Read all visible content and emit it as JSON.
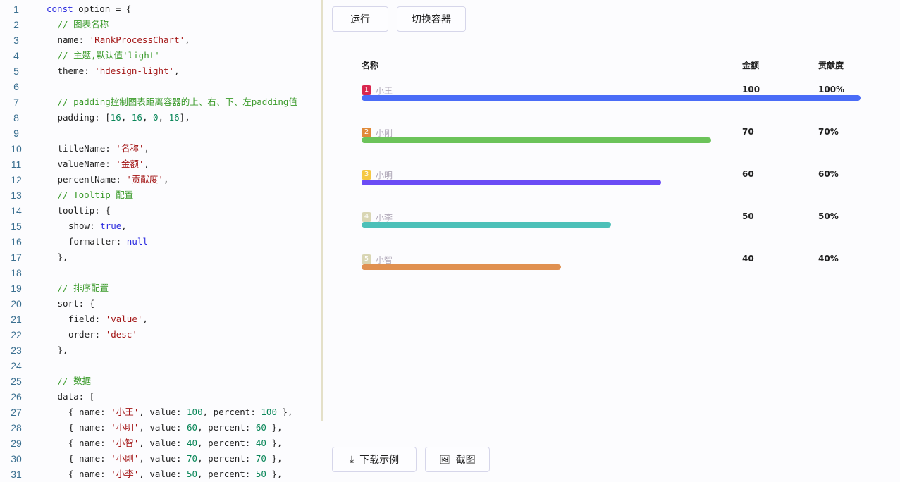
{
  "editor": {
    "lines": [
      [
        0,
        [
          [
            "const",
            "k"
          ],
          [
            " option = {",
            "p"
          ]
        ]
      ],
      [
        1,
        [
          [
            "// 图表名称",
            "c"
          ]
        ]
      ],
      [
        1,
        [
          [
            "name: ",
            "p"
          ],
          [
            "'RankProcessChart'",
            "s"
          ],
          [
            ",",
            "p"
          ]
        ]
      ],
      [
        1,
        [
          [
            "// 主题,默认值'light'",
            "c"
          ]
        ]
      ],
      [
        1,
        [
          [
            "theme: ",
            "p"
          ],
          [
            "'hdesign-light'",
            "s"
          ],
          [
            ",",
            "p"
          ]
        ]
      ],
      [
        0,
        []
      ],
      [
        1,
        [
          [
            "// padding控制图表距离容器的上、右、下、左padding值",
            "c"
          ]
        ]
      ],
      [
        1,
        [
          [
            "padding: [",
            "p"
          ],
          [
            "16",
            "n"
          ],
          [
            ", ",
            "p"
          ],
          [
            "16",
            "n"
          ],
          [
            ", ",
            "p"
          ],
          [
            "0",
            "n"
          ],
          [
            ", ",
            "p"
          ],
          [
            "16",
            "n"
          ],
          [
            "],",
            "p"
          ]
        ]
      ],
      [
        1,
        []
      ],
      [
        1,
        [
          [
            "titleName: ",
            "p"
          ],
          [
            "'名称'",
            "s"
          ],
          [
            ",",
            "p"
          ]
        ]
      ],
      [
        1,
        [
          [
            "valueName: ",
            "p"
          ],
          [
            "'金额'",
            "s"
          ],
          [
            ",",
            "p"
          ]
        ]
      ],
      [
        1,
        [
          [
            "percentName: ",
            "p"
          ],
          [
            "'贡献度'",
            "s"
          ],
          [
            ",",
            "p"
          ]
        ]
      ],
      [
        1,
        [
          [
            "// Tooltip 配置",
            "c"
          ]
        ]
      ],
      [
        1,
        [
          [
            "tooltip: {",
            "p"
          ]
        ]
      ],
      [
        2,
        [
          [
            "show: ",
            "p"
          ],
          [
            "true",
            "k"
          ],
          [
            ",",
            "p"
          ]
        ]
      ],
      [
        2,
        [
          [
            "formatter: ",
            "p"
          ],
          [
            "null",
            "k"
          ]
        ]
      ],
      [
        1,
        [
          [
            "},",
            "p"
          ]
        ]
      ],
      [
        1,
        []
      ],
      [
        1,
        [
          [
            "// 排序配置",
            "c"
          ]
        ]
      ],
      [
        1,
        [
          [
            "sort: {",
            "p"
          ]
        ]
      ],
      [
        2,
        [
          [
            "field: ",
            "p"
          ],
          [
            "'value'",
            "s"
          ],
          [
            ",",
            "p"
          ]
        ]
      ],
      [
        2,
        [
          [
            "order: ",
            "p"
          ],
          [
            "'desc'",
            "s"
          ]
        ]
      ],
      [
        1,
        [
          [
            "},",
            "p"
          ]
        ]
      ],
      [
        1,
        []
      ],
      [
        1,
        [
          [
            "// 数据",
            "c"
          ]
        ]
      ],
      [
        1,
        [
          [
            "data: [",
            "p"
          ]
        ]
      ],
      [
        2,
        [
          [
            "{ name: ",
            "p"
          ],
          [
            "'小王'",
            "s"
          ],
          [
            ", value: ",
            "p"
          ],
          [
            "100",
            "n"
          ],
          [
            ", percent: ",
            "p"
          ],
          [
            "100",
            "n"
          ],
          [
            " },",
            "p"
          ]
        ]
      ],
      [
        2,
        [
          [
            "{ name: ",
            "p"
          ],
          [
            "'小明'",
            "s"
          ],
          [
            ", value: ",
            "p"
          ],
          [
            "60",
            "n"
          ],
          [
            ", percent: ",
            "p"
          ],
          [
            "60",
            "n"
          ],
          [
            " },",
            "p"
          ]
        ]
      ],
      [
        2,
        [
          [
            "{ name: ",
            "p"
          ],
          [
            "'小智'",
            "s"
          ],
          [
            ", value: ",
            "p"
          ],
          [
            "40",
            "n"
          ],
          [
            ", percent: ",
            "p"
          ],
          [
            "40",
            "n"
          ],
          [
            " },",
            "p"
          ]
        ]
      ],
      [
        2,
        [
          [
            "{ name: ",
            "p"
          ],
          [
            "'小刚'",
            "s"
          ],
          [
            ", value: ",
            "p"
          ],
          [
            "70",
            "n"
          ],
          [
            ", percent: ",
            "p"
          ],
          [
            "70",
            "n"
          ],
          [
            " },",
            "p"
          ]
        ]
      ],
      [
        2,
        [
          [
            "{ name: ",
            "p"
          ],
          [
            "'小李'",
            "s"
          ],
          [
            ", value: ",
            "p"
          ],
          [
            "50",
            "n"
          ],
          [
            ", percent: ",
            "p"
          ],
          [
            "50",
            "n"
          ],
          [
            " },",
            "p"
          ]
        ]
      ]
    ]
  },
  "toolbar": {
    "run": "运行",
    "switch": "切换容器",
    "download": "下载示例",
    "screenshot": "截图"
  },
  "chart": {
    "title_name": "名称",
    "value_name": "金额",
    "percent_name": "贡献度",
    "rows": [
      {
        "rank": "1",
        "name": "小王",
        "value": "100",
        "percent": "100%",
        "fraction": 1.0,
        "badge": "#d9264f",
        "bar": "#4a6cf7"
      },
      {
        "rank": "2",
        "name": "小刚",
        "value": "70",
        "percent": "70%",
        "fraction": 0.7,
        "badge": "#e08a3a",
        "bar": "#6cc35a"
      },
      {
        "rank": "3",
        "name": "小明",
        "value": "60",
        "percent": "60%",
        "fraction": 0.6,
        "badge": "#f5c842",
        "bar": "#6b4cf5"
      },
      {
        "rank": "4",
        "name": "小李",
        "value": "50",
        "percent": "50%",
        "fraction": 0.5,
        "badge": "#d9d6b4",
        "bar": "#4cc0b8"
      },
      {
        "rank": "5",
        "name": "小智",
        "value": "40",
        "percent": "40%",
        "fraction": 0.4,
        "badge": "#d9d6b4",
        "bar": "#e09050"
      }
    ]
  }
}
